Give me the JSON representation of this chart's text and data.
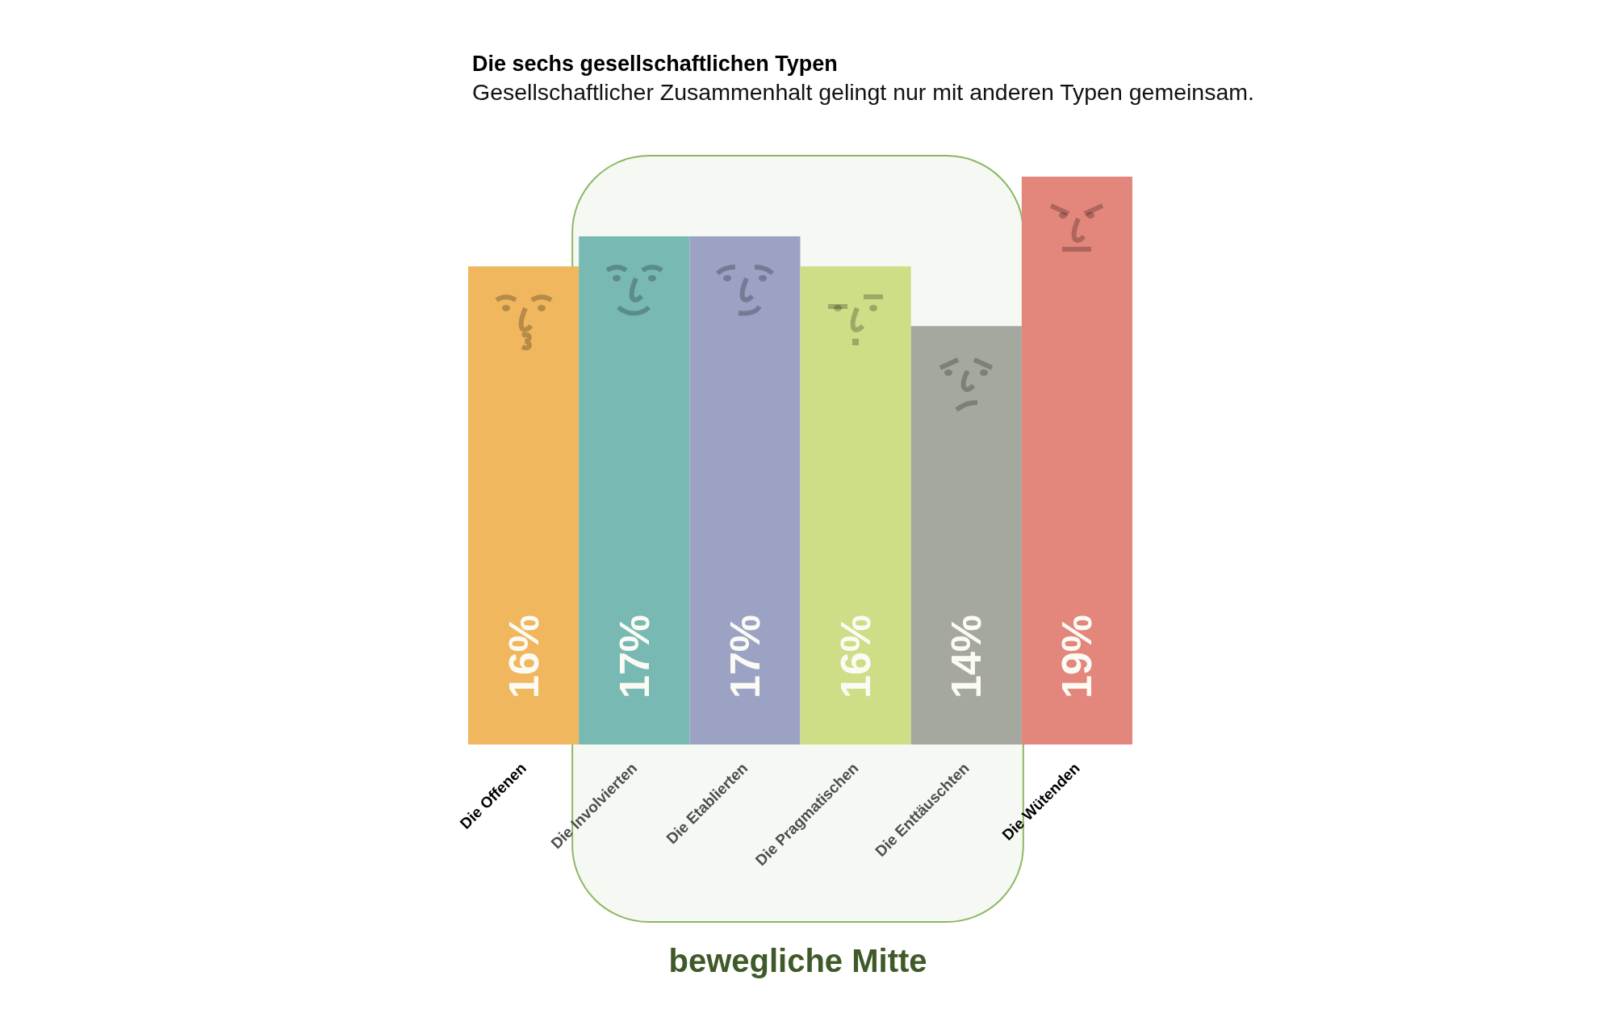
{
  "chart_data": {
    "type": "bar",
    "title": "Die sechs gesellschaftlichen Typen",
    "subtitle": "Gesellschaftlicher Zusammenhalt gelingt nur mit anderen Typen gemeinsam.",
    "categories": [
      "Die Offenen",
      "Die Involvierten",
      "Die Etablierten",
      "Die Pragmatischen",
      "Die Enttäuschten",
      "Die Wütenden"
    ],
    "values": [
      16,
      17,
      17,
      16,
      14,
      19
    ],
    "colors": [
      "#f0b75f",
      "#78b9b4",
      "#9ca2c4",
      "#cdde86",
      "#a5a89f",
      "#e3867c"
    ],
    "value_labels": [
      "16%",
      "17%",
      "17%",
      "16%",
      "14%",
      "19%"
    ],
    "bands": [
      {
        "axis": "x",
        "from": "Die Involvierten",
        "to": "Die Enttäuschten",
        "label": "bewegliche Mitte",
        "color": "#8cb863"
      }
    ]
  }
}
